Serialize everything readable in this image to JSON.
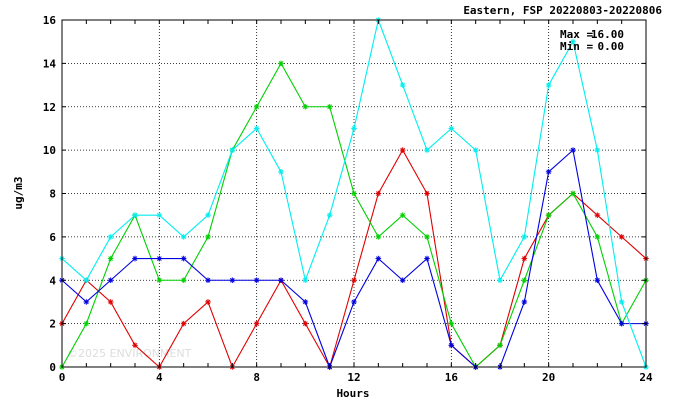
{
  "chart_data": {
    "type": "line",
    "title": "Eastern, FSP 20220803-20220806",
    "xlabel": "Hours",
    "ylabel": "ug/m3",
    "xlim": [
      0,
      24
    ],
    "ylim": [
      0,
      16
    ],
    "xticks": [
      0,
      4,
      8,
      12,
      16,
      20,
      24
    ],
    "yticks": [
      0,
      2,
      4,
      6,
      8,
      10,
      12,
      14,
      16
    ],
    "x": [
      0,
      1,
      2,
      3,
      4,
      5,
      6,
      7,
      8,
      9,
      10,
      11,
      12,
      13,
      14,
      15,
      16,
      17,
      18,
      19,
      20,
      21,
      22,
      23,
      24
    ],
    "grid": true,
    "legend": "none",
    "stats": {
      "max_label": "Max =",
      "max_value": "16.00",
      "min_label": "Min =",
      "min_value": "0.00"
    },
    "watermark": "©2025 ENVIRONMENT",
    "series": [
      {
        "color": "#e00000",
        "values": [
          2,
          4,
          3,
          1,
          0,
          2,
          3,
          0,
          2,
          4,
          2,
          0,
          4,
          8,
          10,
          8,
          1,
          0,
          1,
          5,
          7,
          8,
          7,
          6,
          5
        ]
      },
      {
        "color": "#00d000",
        "values": [
          0,
          2,
          5,
          7,
          4,
          4,
          6,
          10,
          12,
          14,
          12,
          12,
          8,
          6,
          7,
          6,
          2,
          0,
          1,
          4,
          7,
          8,
          6,
          2,
          4
        ]
      },
      {
        "color": "#0000e0",
        "values": [
          4,
          3,
          4,
          5,
          5,
          5,
          4,
          4,
          4,
          4,
          3,
          0,
          3,
          5,
          4,
          5,
          1,
          0,
          0,
          3,
          9,
          10,
          4,
          2,
          2
        ]
      },
      {
        "color": "#00eeee",
        "values": [
          5,
          4,
          6,
          7,
          7,
          6,
          7,
          10,
          11,
          9,
          4,
          7,
          11,
          16,
          13,
          10,
          11,
          10,
          4,
          6,
          13,
          15,
          10,
          3,
          0
        ]
      }
    ]
  }
}
